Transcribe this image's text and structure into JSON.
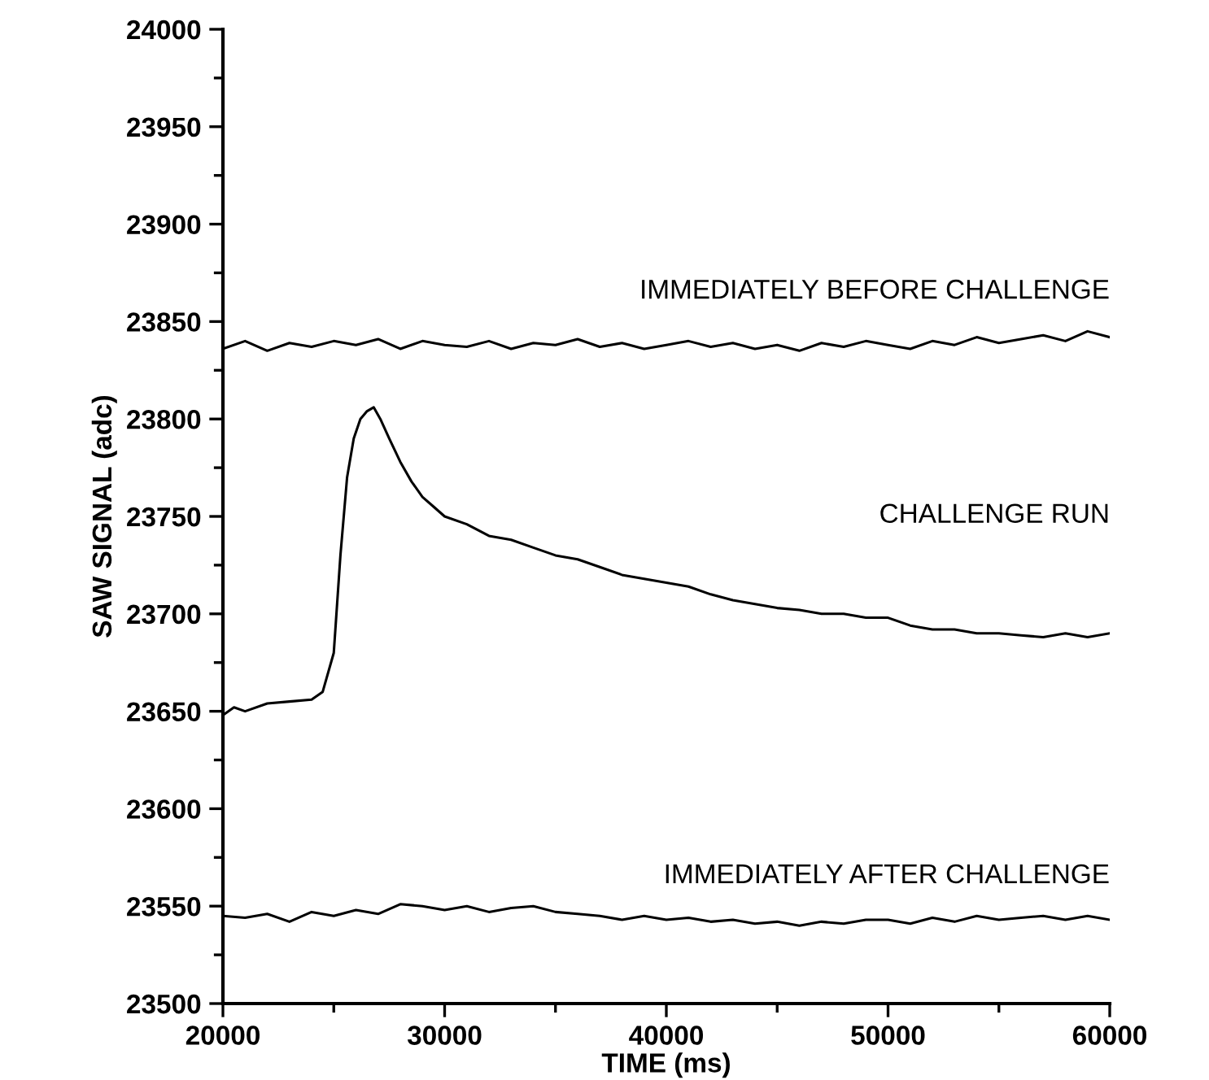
{
  "chart_data": {
    "type": "line",
    "xlabel": "TIME (ms)",
    "ylabel": "SAW SIGNAL (adc)",
    "xlim": [
      20000,
      60000
    ],
    "ylim": [
      23500,
      24000
    ],
    "xticks": [
      20000,
      {
        "value": 25000,
        "label": null
      },
      30000,
      {
        "value": 35000,
        "label": null
      },
      40000,
      {
        "value": 45000,
        "label": null
      },
      50000,
      {
        "value": 55000,
        "label": null
      },
      60000
    ],
    "yticks": [
      23500,
      {
        "value": 23525,
        "label": null
      },
      23550,
      {
        "value": 23575,
        "label": null
      },
      23600,
      {
        "value": 23625,
        "label": null
      },
      23650,
      {
        "value": 23675,
        "label": null
      },
      23700,
      {
        "value": 23725,
        "label": null
      },
      23750,
      {
        "value": 23775,
        "label": null
      },
      23800,
      {
        "value": 23825,
        "label": null
      },
      23850,
      {
        "value": 23875,
        "label": null
      },
      23900,
      {
        "value": 23925,
        "label": null
      },
      23950,
      {
        "value": 23975,
        "label": null
      },
      24000
    ],
    "grid": false,
    "marker": "none",
    "line_style": "solid",
    "series": [
      {
        "color": "#000000",
        "x": [
          20000,
          21000,
          22000,
          23000,
          24000,
          25000,
          26000,
          27000,
          28000,
          29000,
          30000,
          31000,
          32000,
          33000,
          34000,
          35000,
          36000,
          37000,
          38000,
          39000,
          40000,
          41000,
          42000,
          43000,
          44000,
          45000,
          46000,
          47000,
          48000,
          49000,
          50000,
          51000,
          52000,
          53000,
          54000,
          55000,
          56000,
          57000,
          58000,
          59000,
          60000
        ],
        "values": [
          23836,
          23840,
          23835,
          23839,
          23837,
          23840,
          23838,
          23841,
          23836,
          23840,
          23838,
          23837,
          23840,
          23836,
          23839,
          23838,
          23841,
          23837,
          23839,
          23836,
          23838,
          23840,
          23837,
          23839,
          23836,
          23838,
          23835,
          23839,
          23837,
          23840,
          23838,
          23836,
          23840,
          23838,
          23842,
          23839,
          23841,
          23843,
          23840,
          23845,
          23842
        ]
      },
      {
        "color": "#000000",
        "x": [
          20000,
          20500,
          21000,
          22000,
          23000,
          24000,
          24500,
          25000,
          25300,
          25600,
          25900,
          26200,
          26500,
          26800,
          27100,
          27500,
          28000,
          28500,
          29000,
          29500,
          30000,
          31000,
          32000,
          33000,
          34000,
          35000,
          36000,
          37000,
          38000,
          39000,
          40000,
          41000,
          42000,
          43000,
          44000,
          45000,
          46000,
          47000,
          48000,
          49000,
          50000,
          51000,
          52000,
          53000,
          54000,
          55000,
          56000,
          57000,
          58000,
          59000,
          60000
        ],
        "values": [
          23648,
          23652,
          23650,
          23654,
          23655,
          23656,
          23660,
          23680,
          23730,
          23770,
          23790,
          23800,
          23804,
          23806,
          23800,
          23790,
          23778,
          23768,
          23760,
          23755,
          23750,
          23746,
          23740,
          23738,
          23734,
          23730,
          23728,
          23724,
          23720,
          23718,
          23716,
          23714,
          23710,
          23707,
          23705,
          23703,
          23702,
          23700,
          23700,
          23698,
          23698,
          23694,
          23692,
          23692,
          23690,
          23690,
          23689,
          23688,
          23690,
          23688,
          23690
        ]
      },
      {
        "color": "#000000",
        "x": [
          20000,
          21000,
          22000,
          23000,
          24000,
          25000,
          26000,
          27000,
          28000,
          29000,
          30000,
          31000,
          32000,
          33000,
          34000,
          35000,
          36000,
          37000,
          38000,
          39000,
          40000,
          41000,
          42000,
          43000,
          44000,
          45000,
          46000,
          47000,
          48000,
          49000,
          50000,
          51000,
          52000,
          53000,
          54000,
          55000,
          56000,
          57000,
          58000,
          59000,
          60000
        ],
        "values": [
          23545,
          23544,
          23546,
          23542,
          23547,
          23545,
          23548,
          23546,
          23551,
          23550,
          23548,
          23550,
          23547,
          23549,
          23550,
          23547,
          23546,
          23545,
          23543,
          23545,
          23543,
          23544,
          23542,
          23543,
          23541,
          23542,
          23540,
          23542,
          23541,
          23543,
          23543,
          23541,
          23544,
          23542,
          23545,
          23543,
          23544,
          23545,
          23543,
          23545,
          23543
        ]
      }
    ],
    "annotations": [
      "IMMEDIATELY BEFORE CHALLENGE",
      "CHALLENGE RUN",
      "IMMEDIATELY AFTER CHALLENGE"
    ]
  }
}
